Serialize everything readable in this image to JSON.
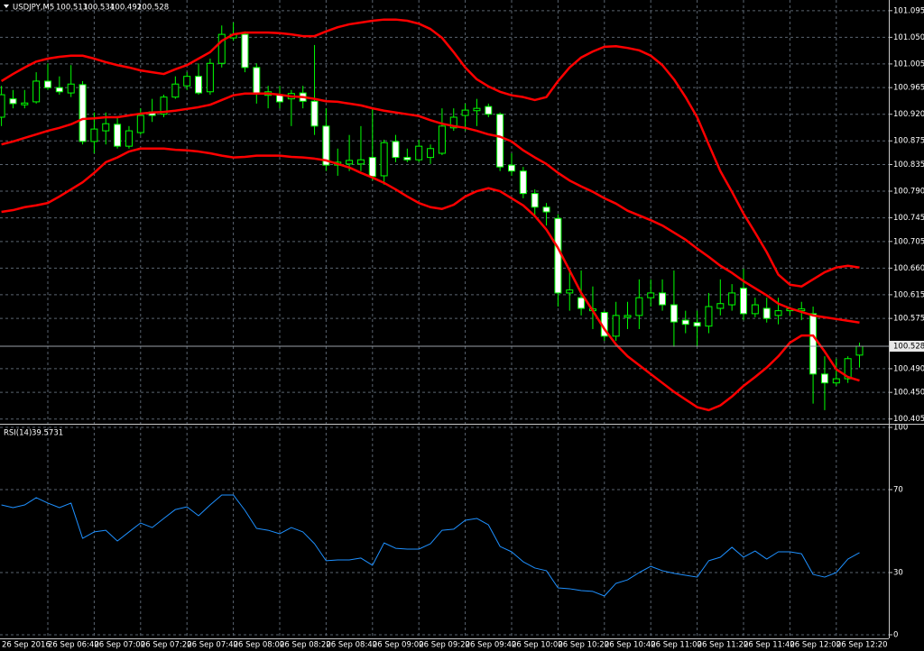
{
  "chart_data": [
    {
      "type": "candlestick",
      "title": "USDJPY,M5",
      "categories": [
        "26 Sep 2016",
        null,
        null,
        null,
        "26 Sep 06:40",
        null,
        null,
        null,
        "26 Sep 07:00",
        null,
        null,
        null,
        "26 Sep 07:20",
        null,
        null,
        null,
        "26 Sep 07:40",
        null,
        null,
        null,
        "26 Sep 08:00",
        null,
        null,
        null,
        "26 Sep 08:20",
        null,
        null,
        null,
        "26 Sep 08:40",
        null,
        null,
        null,
        "26 Sep 09:00",
        null,
        null,
        null,
        "26 Sep 09:20",
        null,
        null,
        null,
        "26 Sep 09:40",
        null,
        null,
        null,
        "26 Sep 10:00",
        null,
        null,
        null,
        "26 Sep 10:20",
        null,
        null,
        null,
        "26 Sep 10:40",
        null,
        null,
        null,
        "26 Sep 11:00",
        null,
        null,
        null,
        "26 Sep 11:20",
        null,
        null,
        null,
        "26 Sep 11:40",
        null,
        null,
        null,
        "26 Sep 12:00",
        null,
        null,
        null,
        "26 Sep 12:20",
        null,
        null
      ],
      "open": [
        100.915,
        100.946,
        100.936,
        100.941,
        100.976,
        100.965,
        100.956,
        100.97,
        100.874,
        100.892,
        100.903,
        100.866,
        100.889,
        100.924,
        100.92,
        100.949,
        100.968,
        100.984,
        100.958,
        101.006,
        101.049,
        101.055,
        100.999,
        100.952,
        100.953,
        100.946,
        100.956,
        100.942,
        100.9,
        100.834,
        100.836,
        100.836,
        100.847,
        100.816,
        100.874,
        100.847,
        100.843,
        100.847,
        100.854,
        100.897,
        100.918,
        100.926,
        100.933,
        100.92,
        100.834,
        100.824,
        100.786,
        100.763,
        100.744,
        100.618,
        100.61,
        100.588,
        100.585,
        100.545,
        100.577,
        100.58,
        100.61,
        100.618,
        100.598,
        100.572,
        100.568,
        100.562,
        100.592,
        100.598,
        100.626,
        100.583,
        100.592,
        100.58,
        100.588,
        100.588,
        100.583,
        100.481,
        100.466,
        100.473,
        100.513
      ],
      "high": [
        100.968,
        100.961,
        100.961,
        100.991,
        101.006,
        100.984,
        101.003,
        100.976,
        100.923,
        100.923,
        100.915,
        100.9,
        100.93,
        100.946,
        100.953,
        100.984,
        100.991,
        101.006,
        101.014,
        101.07,
        101.075,
        101.06,
        101.006,
        100.968,
        100.968,
        100.961,
        100.968,
        101.037,
        100.93,
        100.862,
        100.885,
        100.9,
        100.93,
        100.877,
        100.885,
        100.862,
        100.877,
        100.869,
        100.93,
        100.93,
        100.938,
        100.946,
        100.938,
        100.923,
        100.854,
        100.831,
        100.793,
        100.77,
        100.751,
        100.656,
        100.656,
        100.629,
        100.588,
        100.603,
        100.603,
        100.641,
        100.641,
        100.641,
        100.656,
        100.588,
        100.588,
        100.618,
        100.641,
        100.633,
        100.659,
        100.61,
        100.61,
        100.61,
        100.595,
        100.603,
        100.595,
        100.511,
        100.507,
        100.511,
        100.534
      ],
      "low": [
        100.9,
        100.93,
        100.93,
        100.938,
        100.961,
        100.953,
        100.949,
        100.869,
        100.854,
        100.869,
        100.862,
        100.862,
        100.885,
        100.907,
        100.915,
        100.946,
        100.961,
        100.953,
        100.953,
        100.999,
        101.044,
        100.991,
        100.938,
        100.93,
        100.93,
        100.9,
        100.93,
        100.885,
        100.824,
        100.816,
        100.824,
        100.824,
        100.808,
        100.801,
        100.839,
        100.839,
        100.839,
        100.836,
        100.851,
        100.892,
        100.892,
        100.9,
        100.915,
        100.824,
        100.816,
        100.778,
        100.748,
        100.732,
        100.595,
        100.588,
        100.58,
        100.557,
        100.537,
        100.537,
        100.557,
        100.557,
        100.595,
        100.588,
        100.527,
        100.55,
        100.527,
        100.55,
        100.58,
        100.588,
        100.572,
        100.577,
        100.568,
        100.565,
        100.58,
        100.572,
        100.431,
        100.42,
        100.461,
        100.466,
        100.492
      ],
      "close": [
        100.953,
        100.938,
        100.939,
        100.976,
        100.965,
        100.958,
        100.971,
        100.874,
        100.895,
        100.904,
        100.866,
        100.892,
        100.918,
        100.918,
        100.949,
        100.971,
        100.984,
        100.956,
        101.006,
        101.055,
        101.055,
        100.999,
        100.956,
        100.958,
        100.941,
        100.955,
        100.942,
        100.9,
        100.834,
        100.839,
        100.842,
        100.843,
        100.815,
        100.872,
        100.847,
        100.843,
        100.866,
        100.862,
        100.9,
        100.915,
        100.927,
        100.93,
        100.92,
        100.831,
        100.824,
        100.786,
        100.763,
        100.755,
        100.618,
        100.623,
        100.592,
        100.591,
        100.545,
        100.58,
        100.58,
        100.61,
        100.618,
        100.598,
        100.569,
        100.565,
        100.562,
        100.595,
        100.6,
        100.618,
        100.583,
        100.598,
        100.575,
        100.588,
        100.591,
        100.591,
        100.481,
        100.466,
        100.473,
        100.507,
        100.528
      ],
      "series": [
        {
          "color": "#ff0000",
          "values": [
            100.976,
            100.988,
            100.999,
            101.009,
            101.014,
            101.017,
            101.019,
            101.019,
            101.014,
            101.008,
            101.003,
            100.999,
            100.994,
            100.991,
            100.988,
            100.996,
            101.003,
            101.014,
            101.025,
            101.044,
            101.055,
            101.058,
            101.058,
            101.058,
            101.057,
            101.055,
            101.052,
            101.052,
            101.06,
            101.067,
            101.072,
            101.075,
            101.078,
            101.08,
            101.08,
            101.078,
            101.073,
            101.064,
            101.049,
            101.025,
            100.999,
            100.979,
            100.967,
            100.958,
            100.952,
            100.949,
            100.944,
            100.949,
            100.976,
            100.999,
            101.016,
            101.026,
            101.034,
            101.035,
            101.032,
            101.028,
            101.019,
            101.003,
            100.979,
            100.949,
            100.915,
            100.869,
            100.824,
            100.789,
            100.752,
            100.72,
            100.687,
            100.649,
            100.632,
            100.629,
            100.641,
            100.653,
            100.661,
            100.664,
            100.661
          ]
        },
        {
          "color": "#ff0000",
          "values": [
            100.869,
            100.874,
            100.88,
            100.886,
            100.892,
            100.897,
            100.903,
            100.912,
            100.913,
            100.915,
            100.915,
            100.918,
            100.921,
            100.923,
            100.924,
            100.926,
            100.929,
            100.932,
            100.936,
            100.944,
            100.952,
            100.955,
            100.955,
            100.955,
            100.953,
            100.95,
            100.949,
            100.946,
            100.942,
            100.941,
            100.938,
            100.935,
            100.93,
            100.926,
            100.923,
            100.92,
            100.917,
            100.91,
            100.904,
            100.9,
            100.897,
            100.892,
            100.886,
            100.882,
            100.874,
            100.859,
            100.847,
            100.836,
            100.821,
            100.808,
            100.798,
            100.789,
            100.778,
            100.769,
            100.757,
            100.749,
            100.741,
            100.732,
            100.72,
            100.708,
            100.693,
            100.679,
            100.664,
            100.652,
            100.638,
            100.626,
            100.614,
            100.6,
            100.592,
            100.586,
            100.58,
            100.577,
            100.574,
            100.571,
            100.568
          ]
        },
        {
          "color": "#ff0000",
          "values": [
            100.755,
            100.758,
            100.763,
            100.766,
            100.77,
            100.781,
            100.793,
            100.805,
            100.821,
            100.839,
            100.847,
            100.857,
            100.862,
            100.862,
            100.862,
            100.86,
            100.859,
            100.857,
            100.854,
            100.85,
            100.847,
            100.848,
            100.85,
            100.85,
            100.85,
            100.848,
            100.847,
            100.845,
            100.842,
            100.836,
            100.83,
            100.821,
            100.813,
            100.804,
            100.793,
            100.781,
            100.77,
            100.763,
            100.76,
            100.767,
            100.781,
            100.79,
            100.795,
            100.79,
            100.778,
            100.766,
            100.748,
            100.725,
            100.694,
            100.656,
            100.618,
            100.588,
            100.557,
            100.531,
            100.511,
            100.496,
            100.481,
            100.466,
            100.451,
            100.438,
            100.425,
            100.42,
            100.428,
            100.443,
            100.461,
            100.476,
            100.492,
            100.511,
            100.534,
            100.546,
            100.546,
            100.519,
            100.489,
            100.476,
            100.47
          ]
        }
      ],
      "ylim": [
        100.4,
        101.11
      ],
      "yticks": [
        101.095,
        {
          "value": 101.05,
          "label": "101.050"
        },
        101.005,
        100.965,
        {
          "value": 100.92,
          "label": "100.920"
        },
        100.875,
        100.835,
        {
          "value": 100.79,
          "label": "100.790"
        },
        100.745,
        100.705,
        {
          "value": 100.66,
          "label": "100.660"
        },
        100.615,
        100.575,
        {
          "value": 100.49,
          "label": "100.490"
        },
        {
          "value": 100.45,
          "label": "100.450"
        },
        100.405
      ],
      "grid": true,
      "wick_color": "#00ff00",
      "bull_color": "#000000",
      "bear_color": "#ffffff"
    },
    {
      "type": "line",
      "title": "RSI(14)",
      "series": [
        {
          "color": "#1e90ff",
          "values": [
            62.6,
            61.3,
            62.6,
            66.1,
            63.5,
            61.3,
            63.5,
            46.5,
            49.6,
            50.4,
            45.2,
            49.6,
            53.9,
            51.7,
            56.1,
            60.4,
            61.7,
            57.4,
            62.6,
            67.4,
            67.4,
            60.0,
            51.3,
            50.4,
            48.7,
            51.7,
            49.6,
            43.9,
            35.7,
            36.1,
            36.1,
            37.0,
            33.5,
            44.3,
            41.7,
            41.3,
            41.3,
            43.9,
            50.4,
            50.9,
            55.2,
            56.1,
            53.0,
            42.6,
            40.0,
            35.2,
            32.2,
            30.9,
            22.6,
            22.2,
            21.3,
            20.9,
            18.7,
            24.8,
            26.5,
            30.0,
            33.0,
            30.9,
            29.6,
            28.7,
            27.8,
            35.7,
            37.4,
            42.2,
            37.4,
            40.4,
            36.5,
            40.0,
            40.0,
            39.1,
            29.1,
            27.8,
            30.0,
            36.5,
            39.5731
          ]
        }
      ],
      "ylim": [
        0,
        100
      ],
      "yticks": [
        0,
        30,
        70,
        100
      ],
      "grid": true
    }
  ]
}
